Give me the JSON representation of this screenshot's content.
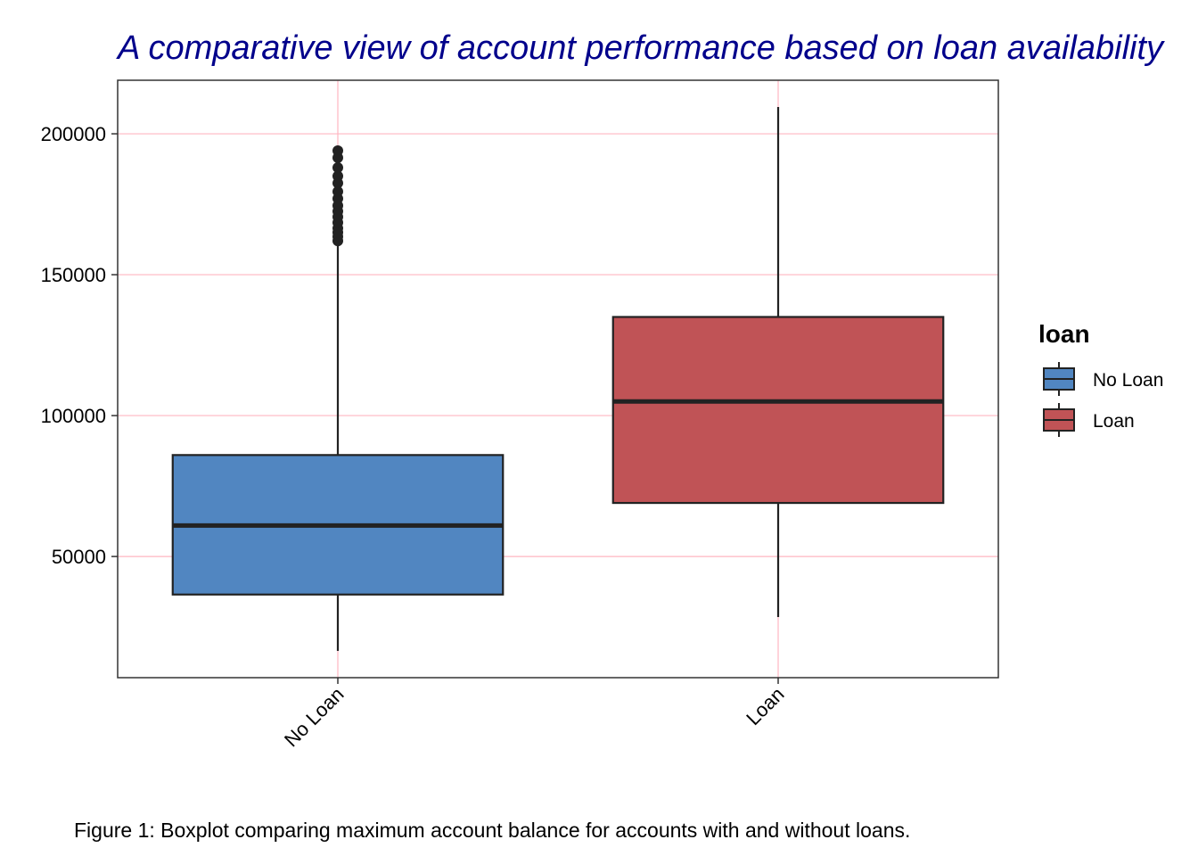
{
  "chart_data": {
    "type": "boxplot",
    "title": "A comparative view of account performance based on loan availability",
    "caption": "Figure 1: Boxplot comparing maximum account balance for accounts with and without loans.",
    "xlabel": "",
    "ylabel": "",
    "categories": [
      "No Loan",
      "Loan"
    ],
    "ylim": [
      7000,
      219000
    ],
    "yticks": [
      50000,
      100000,
      150000,
      200000
    ],
    "grid": true,
    "grid_color": "#ffb6c1",
    "legend": {
      "title": "loan",
      "position": "right"
    },
    "series": [
      {
        "name": "No Loan",
        "color": "#5186c1",
        "min": 16500,
        "q1": 36500,
        "median": 61000,
        "q3": 86000,
        "max": 161500,
        "outliers": [
          162000,
          163500,
          165000,
          166500,
          168500,
          170500,
          172500,
          174500,
          177000,
          179500,
          182500,
          185000,
          188000,
          191500,
          194000
        ]
      },
      {
        "name": "Loan",
        "color": "#c05356",
        "min": 28500,
        "q1": 69000,
        "median": 105000,
        "q3": 135000,
        "max": 209500,
        "outliers": []
      }
    ]
  }
}
